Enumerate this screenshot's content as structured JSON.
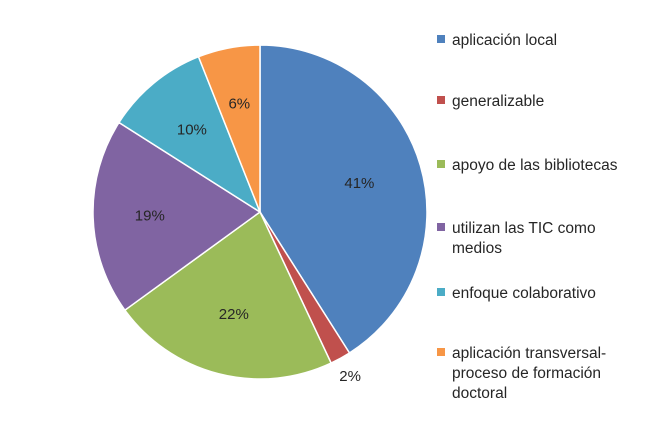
{
  "chart_data": {
    "type": "pie",
    "title": "",
    "start_angle_deg": 90,
    "direction": "clockwise",
    "legend_position": "right",
    "slices": [
      {
        "label": "aplicación local",
        "value": 41,
        "display": "41%",
        "color": "#4f81bd"
      },
      {
        "label": "generalizable",
        "value": 2,
        "display": "2%",
        "color": "#c0504d"
      },
      {
        "label": "apoyo de las bibliotecas",
        "value": 22,
        "display": "22%",
        "color": "#9bbb59"
      },
      {
        "label": "utilizan las TIC como medios",
        "value": 19,
        "display": "19%",
        "color": "#8064a2"
      },
      {
        "label": "enfoque colaborativo",
        "value": 10,
        "display": "10%",
        "color": "#4bacc6"
      },
      {
        "label": "aplicación transversal-proceso de formación doctoral",
        "value": 6,
        "display": "6%",
        "color": "#f79646"
      }
    ],
    "legend": [
      {
        "lines": [
          "aplicación local"
        ],
        "color": "#4f81bd"
      },
      {
        "lines": [
          "generalizable"
        ],
        "color": "#c0504d"
      },
      {
        "lines": [
          "apoyo de las bibliotecas"
        ],
        "color": "#9bbb59"
      },
      {
        "lines": [
          "utilizan las TIC como",
          "medios"
        ],
        "color": "#8064a2"
      },
      {
        "lines": [
          "enfoque colaborativo"
        ],
        "color": "#4bacc6"
      },
      {
        "lines": [
          "aplicación transversal-",
          "proceso de formación",
          "doctoral"
        ],
        "color": "#f79646"
      }
    ]
  }
}
